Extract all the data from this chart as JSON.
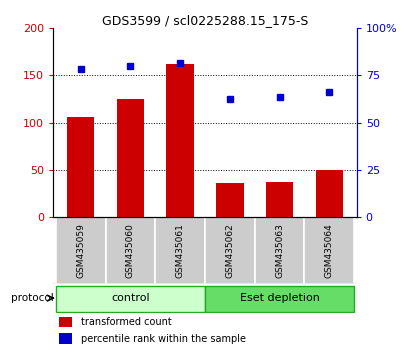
{
  "title": "GDS3599 / scl0225288.15_175-S",
  "samples": [
    "GSM435059",
    "GSM435060",
    "GSM435061",
    "GSM435062",
    "GSM435063",
    "GSM435064"
  ],
  "bar_values": [
    106,
    125,
    162,
    36,
    37,
    50
  ],
  "dot_values": [
    78.5,
    80,
    81.5,
    62.5,
    63.5,
    66
  ],
  "bar_color": "#cc0000",
  "dot_color": "#0000cc",
  "left_ylim": [
    0,
    200
  ],
  "right_ylim": [
    0,
    100
  ],
  "left_yticks": [
    0,
    50,
    100,
    150,
    200
  ],
  "right_yticks": [
    0,
    25,
    50,
    75,
    100
  ],
  "right_yticklabels": [
    "0",
    "25",
    "50",
    "75",
    "100%"
  ],
  "grid_yticks": [
    50,
    100,
    150
  ],
  "protocol_labels": [
    "control",
    "Eset depletion"
  ],
  "protocol_groups": [
    3,
    3
  ],
  "protocol_colors_light": [
    "#ccffcc",
    "#66dd66"
  ],
  "protocol_edge_color": "#22aa22",
  "sample_bg_color": "#cccccc",
  "legend_bar_label": "transformed count",
  "legend_dot_label": "percentile rank within the sample",
  "protocol_text": "protocol",
  "bar_width": 0.55
}
